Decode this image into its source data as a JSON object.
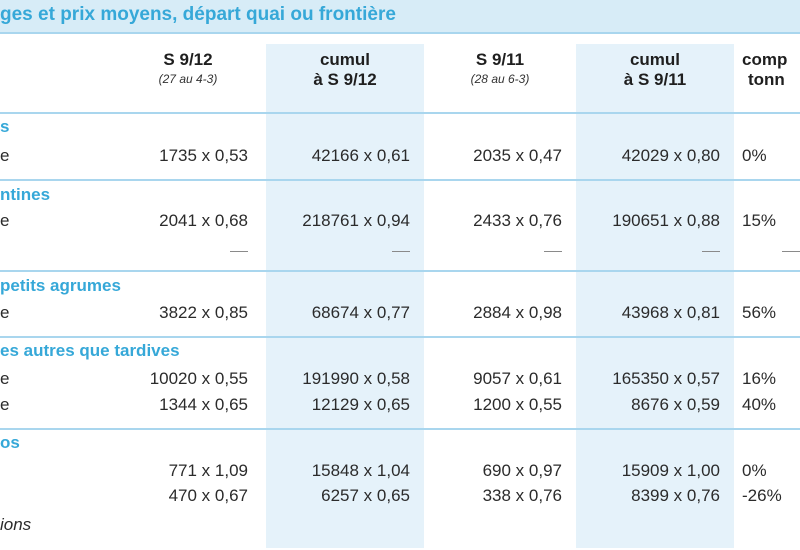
{
  "title": "ges et prix moyens, départ quai ou frontière",
  "columns": [
    {
      "title": "S 9/12",
      "subtitle": "(27 au 4-3)"
    },
    {
      "title": "cumul",
      "title2": "à S 9/12"
    },
    {
      "title": "S 9/11",
      "subtitle": "(28 au 6-3)"
    },
    {
      "title": "cumul",
      "title2": "à S 9/11"
    },
    {
      "title": "comp",
      "title2": "tonn"
    }
  ],
  "sections": [
    {
      "title": "s",
      "rows": [
        {
          "label": "e",
          "values": [
            "1735 x 0,53",
            "42166 x 0,61",
            "2035 x 0,47",
            "42029 x 0,80",
            "0%"
          ]
        }
      ]
    },
    {
      "title": "ntines",
      "rows": [
        {
          "label": "e",
          "values": [
            "2041 x 0,68",
            "218761 x 0,94",
            "2433 x 0,76",
            "190651 x 0,88",
            "15%"
          ]
        }
      ]
    },
    {
      "title": "petits agrumes",
      "rows": [
        {
          "label": "e",
          "values": [
            "3822 x 0,85",
            "68674 x 0,77",
            "2884 x 0,98",
            "43968 x 0,81",
            "56%"
          ]
        }
      ]
    },
    {
      "title": "es autres que tardives",
      "rows": [
        {
          "label": "e",
          "values": [
            "10020 x 0,55",
            "191990 x 0,58",
            "9057 x 0,61",
            "165350 x 0,57",
            "16%"
          ]
        },
        {
          "label": "e",
          "values": [
            "1344 x 0,65",
            "12129 x 0,65",
            "1200 x 0,55",
            "8676 x 0,59",
            "40%"
          ]
        }
      ]
    },
    {
      "title": "os",
      "rows": [
        {
          "label": "",
          "values": [
            "771 x 1,09",
            "15848 x 1,04",
            "690 x 0,97",
            "15909 x 1,00",
            "0%"
          ]
        },
        {
          "label": "",
          "values": [
            "470 x 0,67",
            "6257 x 0,65",
            "338 x 0,76",
            "8399 x 0,76",
            "-26%"
          ]
        }
      ]
    }
  ],
  "footer_label": "ions"
}
